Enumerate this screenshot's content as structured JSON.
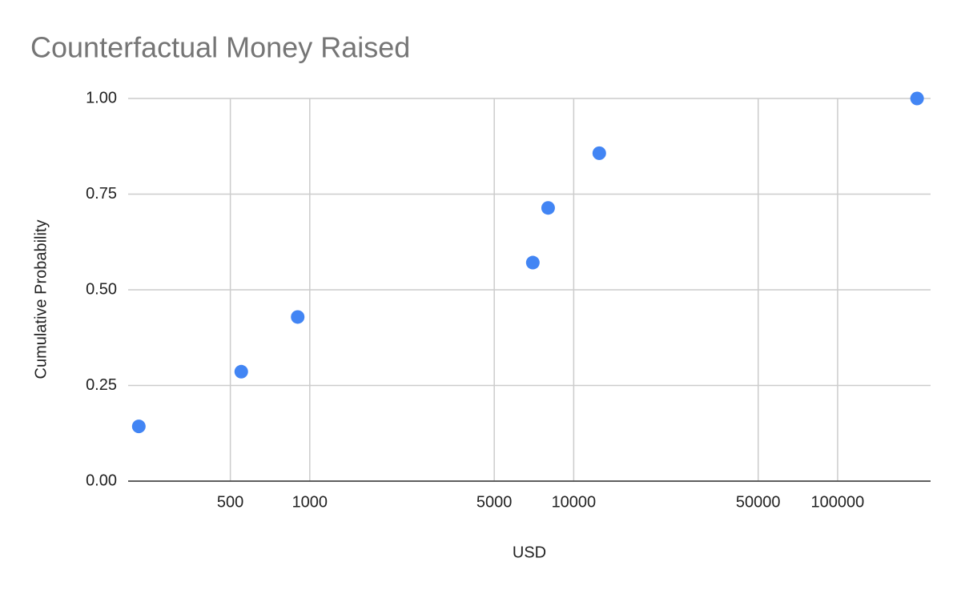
{
  "chart_data": {
    "type": "scatter",
    "title": "Counterfactual Money Raised",
    "x_label": "USD",
    "y_label": "Cumulative Probability",
    "x": [
      225,
      550,
      900,
      7000,
      8000,
      12500,
      200000
    ],
    "values": [
      0.143,
      0.286,
      0.429,
      0.571,
      0.714,
      0.857,
      1.0
    ],
    "color": "#4285f4",
    "xscale": "log",
    "xlim": [
      205,
      225000
    ],
    "xticks": [
      500,
      1000,
      5000,
      10000,
      50000,
      100000
    ],
    "ylim": [
      0,
      1
    ],
    "yticks": [
      {
        "value": 0,
        "label": "0.00"
      },
      {
        "value": 0.25,
        "label": "0.25"
      },
      {
        "value": 0.5,
        "label": "0.50"
      },
      {
        "value": 0.75,
        "label": "0.75"
      },
      {
        "value": 1,
        "label": "1.00"
      }
    ],
    "grid": true
  }
}
